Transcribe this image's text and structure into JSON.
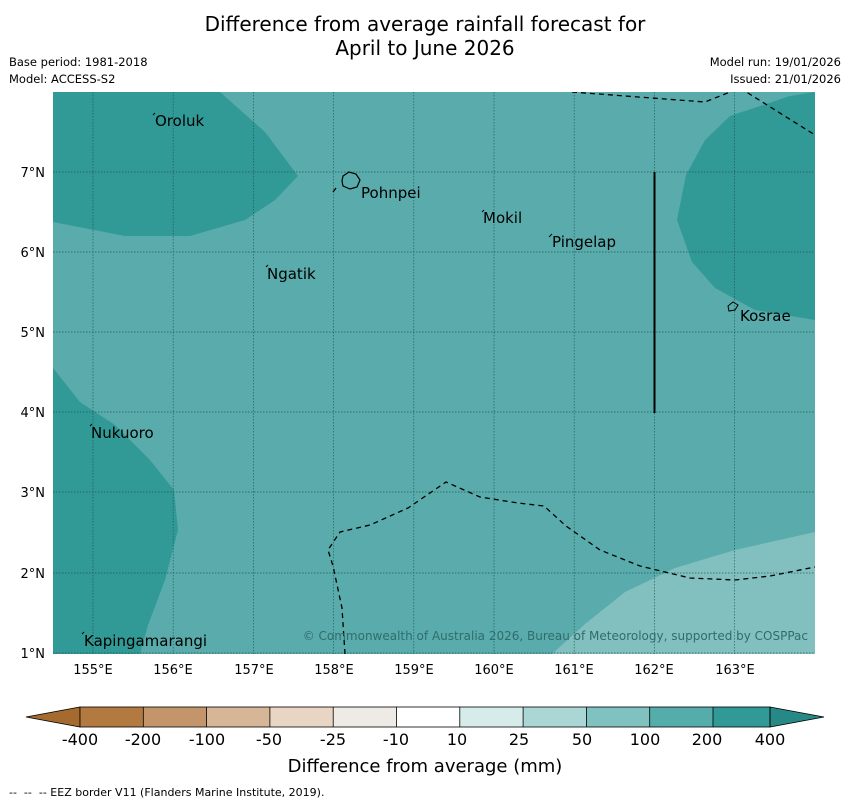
{
  "title": {
    "line1": "Difference from average rainfall forecast for",
    "line2": "April to June 2026"
  },
  "meta": {
    "base_period": "Base period: 1981-2018",
    "model": "Model: ACCESS-S2",
    "model_run": "Model run: 19/01/2026",
    "issued": "Issued: 21/01/2026"
  },
  "map": {
    "lon_ticks": [
      "155°E",
      "156°E",
      "157°E",
      "158°E",
      "159°E",
      "160°E",
      "161°E",
      "162°E",
      "163°E"
    ],
    "lat_ticks": [
      "1°N",
      "2°N",
      "3°N",
      "4°N",
      "5°N",
      "6°N",
      "7°N"
    ],
    "places": [
      {
        "name": "Oroluk"
      },
      {
        "name": "Pohnpei"
      },
      {
        "name": "Mokil"
      },
      {
        "name": "Pingelap"
      },
      {
        "name": "Ngatik"
      },
      {
        "name": "Kosrae"
      },
      {
        "name": "Nukuoro"
      },
      {
        "name": "Kapingamarangi"
      }
    ],
    "copyright": "© Commonwealth of Australia 2026, Bureau of Meteorology, supported by COSPPac",
    "colors": {
      "band_100_200": "#5aabab",
      "band_200_400": "#319a97",
      "band_50_100": "#82bfbf",
      "grid": "#1a4f4f"
    }
  },
  "colorbar": {
    "labels": [
      "-400",
      "-200",
      "-100",
      "-50",
      "-25",
      "-10",
      "10",
      "25",
      "50",
      "100",
      "200",
      "400"
    ],
    "colors": [
      "#a56a2e",
      "#b27a40",
      "#c4956a",
      "#d7b597",
      "#e8d5c4",
      "#eeebe7",
      "#ffffff",
      "#d5ecea",
      "#aad7d6",
      "#7fc2c0",
      "#55adab",
      "#319a97",
      "#278986"
    ],
    "title": "Difference from average (mm)"
  },
  "footnote": "--  --  -- EEZ border V11 (Flanders Marine Institute, 2019)."
}
